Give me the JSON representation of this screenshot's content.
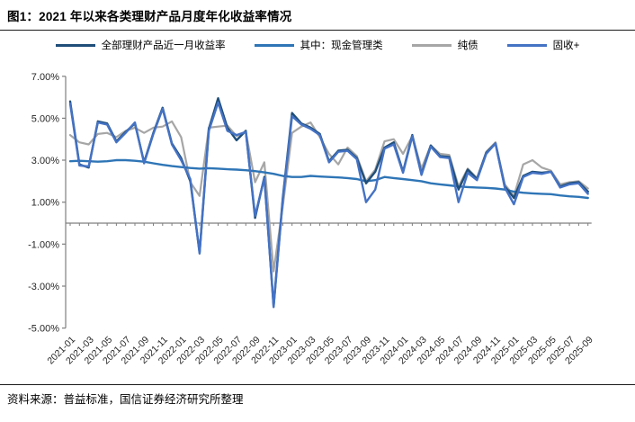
{
  "title": "图1：2021 年以来各类理财产品月度年化收益率情况",
  "source": "资料来源：普益标准，国信证券经济研究所整理",
  "chart_data": {
    "type": "line",
    "title": "图1：2021 年以来各类理财产品月度年化收益率情况",
    "xlabel": "",
    "ylabel": "",
    "ylim": [
      -5,
      7
    ],
    "grid": false,
    "legend_position": "top",
    "x_label_step": 2,
    "y_ticks": [
      7,
      5,
      3,
      1,
      -1,
      -3,
      -5
    ],
    "y_tick_labels": [
      "7.00%",
      "5.00%",
      "3.00%",
      "1.00%",
      "-1.00%",
      "-3.00%",
      "-5.00%"
    ],
    "x": [
      "2021-01",
      "2021-02",
      "2021-03",
      "2021-04",
      "2021-05",
      "2021-06",
      "2021-07",
      "2021-08",
      "2021-09",
      "2021-10",
      "2021-11",
      "2021-12",
      "2022-01",
      "2022-02",
      "2022-03",
      "2022-04",
      "2022-05",
      "2022-06",
      "2022-07",
      "2022-08",
      "2022-09",
      "2022-10",
      "2022-11",
      "2022-12",
      "2023-01",
      "2023-02",
      "2023-03",
      "2023-04",
      "2023-05",
      "2023-06",
      "2023-07",
      "2023-08",
      "2023-09",
      "2023-10",
      "2023-11",
      "2023-12",
      "2024-01",
      "2024-02",
      "2024-03",
      "2024-04",
      "2024-05",
      "2024-06",
      "2024-07",
      "2024-08",
      "2024-09",
      "2024-10",
      "2024-11",
      "2024-12",
      "2025-01",
      "2025-02",
      "2025-03",
      "2025-04",
      "2025-05",
      "2025-06",
      "2025-07",
      "2025-08",
      "2025-09"
    ],
    "series": [
      {
        "name": "全部理财产品近一月收益率",
        "color": "#1F4E79",
        "values": [
          5.8,
          2.8,
          2.65,
          4.85,
          4.75,
          3.9,
          4.35,
          4.75,
          2.9,
          4.3,
          5.5,
          3.8,
          3.1,
          2.0,
          -1.4,
          4.5,
          5.95,
          4.55,
          3.95,
          4.4,
          0.25,
          2.2,
          -3.95,
          1.2,
          5.25,
          4.75,
          4.55,
          4.25,
          2.95,
          3.45,
          3.5,
          3.1,
          1.9,
          2.45,
          3.6,
          3.85,
          2.45,
          4.2,
          2.35,
          3.7,
          3.2,
          3.15,
          1.6,
          2.55,
          2.1,
          3.35,
          3.8,
          1.75,
          1.2,
          2.25,
          2.45,
          2.4,
          2.45,
          1.75,
          1.9,
          1.95,
          1.5
        ]
      },
      {
        "name": "其中：现金管理类",
        "color": "#2E75B6",
        "values": [
          2.95,
          2.97,
          2.95,
          2.93,
          2.95,
          3.0,
          3.0,
          2.97,
          2.93,
          2.85,
          2.78,
          2.72,
          2.67,
          2.63,
          2.6,
          2.62,
          2.6,
          2.57,
          2.55,
          2.52,
          2.48,
          2.42,
          2.35,
          2.25,
          2.2,
          2.2,
          2.25,
          2.22,
          2.2,
          2.18,
          2.15,
          2.1,
          2.0,
          2.05,
          2.2,
          2.15,
          2.1,
          2.05,
          2.0,
          1.9,
          1.85,
          1.8,
          1.75,
          1.72,
          1.7,
          1.68,
          1.65,
          1.6,
          1.5,
          1.45,
          1.42,
          1.4,
          1.38,
          1.32,
          1.28,
          1.25,
          1.2
        ]
      },
      {
        "name": "纯债",
        "color": "#A6A6A6",
        "values": [
          4.2,
          3.85,
          3.75,
          4.25,
          4.3,
          4.1,
          4.4,
          4.55,
          4.3,
          4.55,
          4.6,
          4.85,
          4.1,
          1.95,
          1.3,
          4.55,
          4.6,
          4.65,
          4.15,
          4.35,
          1.95,
          2.9,
          -2.3,
          0.8,
          4.3,
          4.6,
          4.8,
          4.1,
          3.3,
          2.8,
          3.6,
          3.2,
          2.0,
          2.55,
          3.9,
          4.0,
          3.3,
          4.15,
          2.6,
          3.7,
          3.3,
          3.25,
          1.75,
          2.6,
          2.15,
          3.4,
          3.85,
          1.85,
          1.3,
          2.8,
          3.0,
          2.65,
          2.5,
          1.85,
          1.95,
          2.0,
          1.65
        ]
      },
      {
        "name": "固收+",
        "color": "#4472C4",
        "values": [
          5.7,
          2.75,
          2.7,
          4.8,
          4.7,
          3.85,
          4.3,
          4.8,
          2.85,
          4.25,
          5.45,
          3.75,
          3.0,
          2.1,
          -1.45,
          4.4,
          5.75,
          4.4,
          4.2,
          4.35,
          0.35,
          2.15,
          -4.0,
          1.1,
          5.1,
          4.7,
          4.5,
          4.2,
          2.9,
          3.4,
          3.45,
          3.05,
          1.0,
          1.6,
          3.55,
          3.75,
          2.4,
          4.15,
          2.3,
          3.65,
          3.15,
          3.1,
          1.0,
          2.4,
          2.05,
          3.3,
          3.8,
          1.7,
          0.9,
          2.2,
          2.4,
          2.35,
          2.45,
          1.7,
          1.85,
          1.9,
          1.4
        ]
      }
    ]
  }
}
